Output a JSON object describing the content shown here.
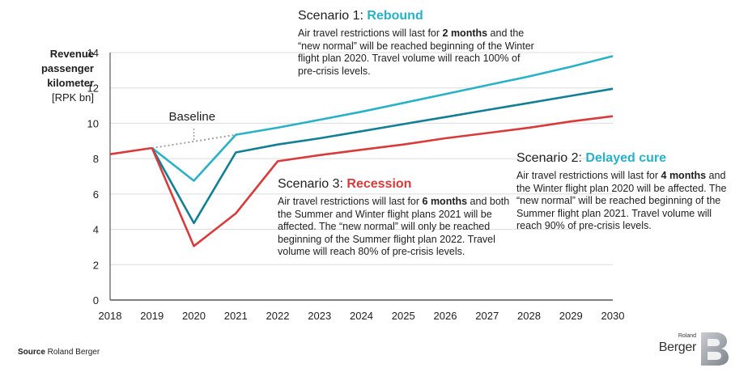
{
  "chart_data": {
    "type": "line",
    "ylabel_bold": [
      "Revenue",
      "passenger",
      "kilometer"
    ],
    "ylabel_unit": "[RPK bn]",
    "x": [
      2018,
      2019,
      2020,
      2021,
      2022,
      2023,
      2024,
      2025,
      2026,
      2027,
      2028,
      2029,
      2030
    ],
    "xlim": [
      2018,
      2030
    ],
    "ylim": [
      0,
      14
    ],
    "yticks": [
      0,
      2,
      4,
      6,
      8,
      10,
      12,
      14
    ],
    "grid": "horizontal",
    "colors": {
      "rebound": "#29b1c7",
      "delayed": "#127f94",
      "recession": "#d93a3a",
      "baseline": "#a0a0a0",
      "history": "#d93a3a"
    },
    "series": [
      {
        "key": "history",
        "x": [
          2018,
          2019
        ],
        "values": [
          8.25,
          8.6
        ]
      },
      {
        "key": "baseline",
        "name": "Baseline",
        "x": [
          2019,
          2020,
          2021
        ],
        "values": [
          8.6,
          8.97,
          9.35
        ]
      },
      {
        "key": "rebound",
        "x": [
          2019,
          2020,
          2021,
          2022,
          2023,
          2024,
          2025,
          2026,
          2027,
          2028,
          2029,
          2030
        ],
        "values": [
          8.6,
          6.75,
          9.35,
          9.75,
          10.2,
          10.65,
          11.15,
          11.65,
          12.15,
          12.65,
          13.2,
          13.8
        ]
      },
      {
        "key": "delayed",
        "x": [
          2019,
          2020,
          2021,
          2022,
          2023,
          2024,
          2025,
          2026,
          2027,
          2028,
          2029,
          2030
        ],
        "values": [
          8.6,
          4.35,
          8.35,
          8.8,
          9.15,
          9.55,
          9.95,
          10.35,
          10.75,
          11.15,
          11.55,
          11.95
        ]
      },
      {
        "key": "recession",
        "x": [
          2019,
          2020,
          2021,
          2022,
          2023,
          2024,
          2025,
          2026,
          2027,
          2028,
          2029,
          2030
        ],
        "values": [
          8.6,
          3.05,
          4.9,
          7.85,
          8.2,
          8.5,
          8.8,
          9.15,
          9.45,
          9.75,
          10.1,
          10.4
        ]
      }
    ],
    "baseline_label": "Baseline"
  },
  "scenarios": {
    "s1": {
      "prefix": "Scenario 1: ",
      "name": "Rebound",
      "t1": "Air travel restrictions will last for ",
      "b1": "2 months",
      "t2": " and the “new normal” will be reached beginning of the Winter flight plan 2020. Travel volume will reach 100% of pre-crisis levels."
    },
    "s2": {
      "prefix": "Scenario 2: ",
      "name": "Delayed cure",
      "t1": "Air travel restrictions will last for ",
      "b1": "4 months",
      "t2": " and the Winter flight plan 2020 will be affected. The “new normal” will be reached beginning of the Summer flight plan 2021. Travel volume will reach 90% of pre-crisis levels."
    },
    "s3": {
      "prefix": "Scenario 3: ",
      "name": "Recession",
      "t1": "Air travel restrictions will last for ",
      "b1": "6 months",
      "t2": " and both the Summer and Winter flight plans 2021 will be affected. The “new normal” will only be reached beginning of the Summer flight plan 2022. Travel volume will reach 80% of pre-crisis levels."
    }
  },
  "source": {
    "label": "Source",
    "text": " Roland Berger"
  },
  "logo": {
    "small": "Roland",
    "big": "Berger"
  }
}
